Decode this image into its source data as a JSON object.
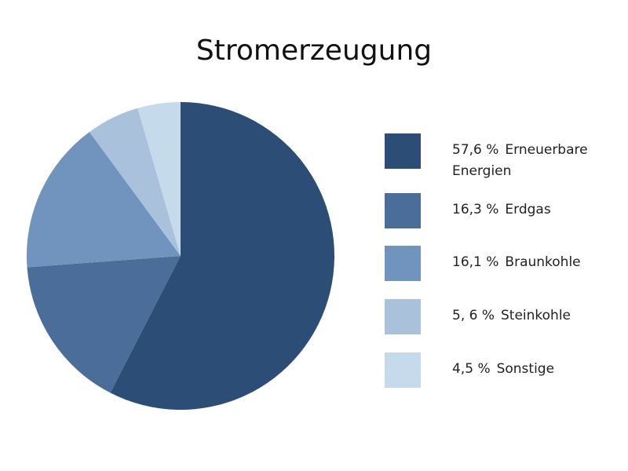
{
  "chart_data": {
    "type": "pie",
    "title": "Stromerzeugung",
    "categories": [
      "Erneuerbare Energien",
      "Erdgas",
      "Braunkohle",
      "Steinkohle",
      "Sonstige"
    ],
    "values": [
      57.6,
      16.3,
      16.1,
      5.6,
      4.5
    ],
    "value_labels": [
      "57,6 %",
      "16,3 %",
      "16,1 %",
      "5, 6 %",
      "4,5 %"
    ],
    "colors": [
      "#2c4d75",
      "#4a6d99",
      "#7094bd",
      "#a9c1da",
      "#c5dbec"
    ]
  }
}
